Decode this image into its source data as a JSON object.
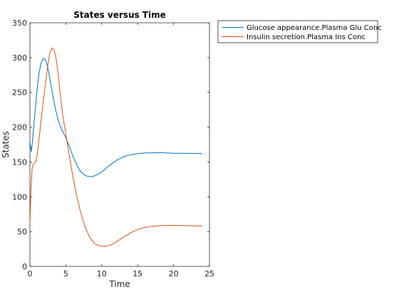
{
  "chart_data": {
    "type": "line",
    "title": "States versus Time",
    "xlabel": "Time",
    "ylabel": "States",
    "xlim": [
      0,
      25
    ],
    "ylim": [
      0,
      350
    ],
    "xticks": [
      0,
      5,
      10,
      15,
      20,
      25
    ],
    "yticks": [
      0,
      50,
      100,
      150,
      200,
      250,
      300,
      350
    ],
    "grid": false,
    "legend_position": "top-right outside",
    "series": [
      {
        "name": "Glucose appearance.Plasma Glu Conc",
        "color": "#0072BD",
        "points": [
          [
            0,
            178
          ],
          [
            0.2,
            165
          ],
          [
            0.4,
            185
          ],
          [
            0.7,
            220
          ],
          [
            1.0,
            255
          ],
          [
            1.3,
            280
          ],
          [
            1.6,
            294
          ],
          [
            1.9,
            299
          ],
          [
            2.2,
            296
          ],
          [
            2.5,
            285
          ],
          [
            2.8,
            268
          ],
          [
            3.2,
            245
          ],
          [
            3.6,
            224
          ],
          [
            4.0,
            208
          ],
          [
            4.5,
            195
          ],
          [
            5.0,
            185
          ],
          [
            5.5,
            172
          ],
          [
            6.0,
            158
          ],
          [
            6.5,
            146
          ],
          [
            7.0,
            137
          ],
          [
            7.5,
            132
          ],
          [
            8.0,
            129.5
          ],
          [
            8.5,
            129
          ],
          [
            9.0,
            130
          ],
          [
            9.5,
            132.5
          ],
          [
            10.0,
            136
          ],
          [
            10.5,
            140
          ],
          [
            11.0,
            144.5
          ],
          [
            12.0,
            152
          ],
          [
            13.0,
            157.5
          ],
          [
            14.0,
            160.5
          ],
          [
            15.0,
            162
          ],
          [
            16.0,
            163
          ],
          [
            17.0,
            163
          ],
          [
            18.0,
            163.5
          ],
          [
            19.0,
            163
          ],
          [
            20.0,
            162.5
          ],
          [
            22.0,
            162.5
          ],
          [
            24.0,
            162
          ]
        ]
      },
      {
        "name": "Insulin secretion.Plasma Ins Conc",
        "color": "#D95319",
        "points": [
          [
            0,
            62
          ],
          [
            0.15,
            110
          ],
          [
            0.3,
            140
          ],
          [
            0.5,
            148
          ],
          [
            0.8,
            150
          ],
          [
            1.0,
            160
          ],
          [
            1.3,
            185
          ],
          [
            1.6,
            215
          ],
          [
            1.9,
            240
          ],
          [
            2.2,
            265
          ],
          [
            2.5,
            290
          ],
          [
            2.8,
            308
          ],
          [
            3.1,
            314
          ],
          [
            3.4,
            310
          ],
          [
            3.7,
            295
          ],
          [
            4.0,
            270
          ],
          [
            4.3,
            240
          ],
          [
            4.6,
            215
          ],
          [
            5.0,
            190
          ],
          [
            5.5,
            158
          ],
          [
            6.0,
            128
          ],
          [
            6.5,
            102
          ],
          [
            7.0,
            80
          ],
          [
            7.5,
            62
          ],
          [
            8.0,
            49
          ],
          [
            8.5,
            39
          ],
          [
            9.0,
            33
          ],
          [
            9.5,
            30
          ],
          [
            10.0,
            29
          ],
          [
            10.5,
            29
          ],
          [
            11.0,
            30
          ],
          [
            11.5,
            32
          ],
          [
            12.0,
            35
          ],
          [
            13.0,
            42
          ],
          [
            14.0,
            48
          ],
          [
            15.0,
            53
          ],
          [
            16.0,
            56
          ],
          [
            17.0,
            57.5
          ],
          [
            18.0,
            58.5
          ],
          [
            20.0,
            59
          ],
          [
            22.0,
            58.5
          ],
          [
            24.0,
            58
          ]
        ]
      }
    ]
  }
}
